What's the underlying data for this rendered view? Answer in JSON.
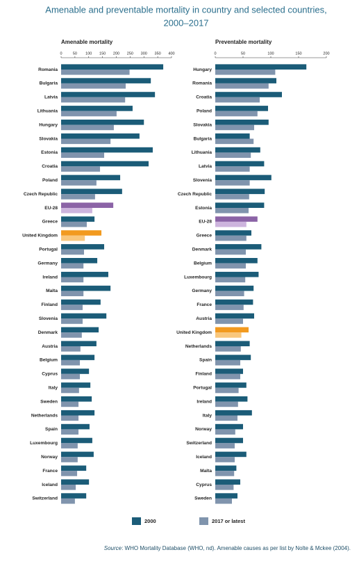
{
  "title": [
    "Amenable and preventable mortality in country and selected countries,",
    "2000–2017"
  ],
  "chart_data": [
    {
      "type": "hbar",
      "title": "Amenable mortality",
      "categories": [
        "Romania",
        "Bulgaria",
        "Latvia",
        "Lithuania",
        "Hungary",
        "Slovakia",
        "Estonia",
        "Croatia",
        "Poland",
        "Czech Republic",
        "EU-28",
        "Greece",
        "United Kingdom",
        "Portugal",
        "Germany",
        "Ireland",
        "Malta",
        "Finland",
        "Slovenia",
        "Denmark",
        "Austria",
        "Belgium",
        "Cyprus",
        "Italy",
        "Sweden",
        "Netherlands",
        "Spain",
        "Luxembourg",
        "Norway",
        "France",
        "Iceland",
        "Switzerland"
      ],
      "series": [
        {
          "name": "2000",
          "color": "#1b5c78",
          "values": [
            370,
            325,
            340,
            259,
            300,
            284,
            332,
            317,
            214,
            221,
            189,
            121,
            146,
            156,
            131,
            171,
            179,
            143,
            164,
            136,
            128,
            121,
            101,
            106,
            111,
            121,
            103,
            113,
            118,
            91,
            101,
            91
          ]
        },
        {
          "name": "2017 or latest",
          "color": "#8094ad",
          "values": [
            248,
            234,
            232,
            201,
            191,
            179,
            156,
            141,
            128,
            123,
            113,
            93,
            86,
            83,
            81,
            81,
            81,
            78,
            78,
            75,
            70,
            68,
            68,
            65,
            63,
            63,
            63,
            60,
            60,
            58,
            53,
            50
          ]
        }
      ],
      "highlights": [
        {
          "index": 10,
          "colors": [
            "#8b63a6",
            "#cdb4dd"
          ]
        },
        {
          "index": 12,
          "colors": [
            "#f29a1f",
            "#f9c77c"
          ]
        }
      ],
      "xlim": [
        0,
        400
      ],
      "xticks": [
        0,
        50,
        100,
        150,
        200,
        250,
        300,
        350,
        400
      ]
    },
    {
      "type": "hbar",
      "title": "Preventable mortality",
      "categories": [
        "Hungary",
        "Romania",
        "Croatia",
        "Poland",
        "Slovakia",
        "Bulgaria",
        "Lithuania",
        "Latvia",
        "Slovenia",
        "Czech Republic",
        "Estonia",
        "EU-28",
        "Greece",
        "Denmark",
        "Belgium",
        "Luxembourg",
        "Germany",
        "France",
        "Austria",
        "United Kingdom",
        "Netherlands",
        "Spain",
        "Finland",
        "Portugal",
        "Ireland",
        "Italy",
        "Norway",
        "Switzerland",
        "Iceland",
        "Malta",
        "Cyprus",
        "Sweden"
      ],
      "series": [
        {
          "color": "#1b5c78",
          "values": [
            164,
            110,
            120,
            95,
            96,
            62,
            81,
            88,
            101,
            89,
            88,
            76,
            65,
            83,
            76,
            78,
            69,
            68,
            70,
            60,
            62,
            64,
            50,
            56,
            58,
            66,
            50,
            50,
            56,
            38,
            45,
            40
          ]
        },
        {
          "color": "#8094ad",
          "values": [
            108,
            96,
            80,
            76,
            70,
            69,
            64,
            62,
            62,
            61,
            60,
            56,
            56,
            55,
            55,
            54,
            52,
            51,
            50,
            47,
            46,
            45,
            45,
            42,
            41,
            40,
            36,
            35,
            35,
            34,
            33,
            30
          ]
        }
      ],
      "highlights": [
        {
          "index": 11,
          "colors": [
            "#8b63a6",
            "#cdb4dd"
          ]
        },
        {
          "index": 19,
          "colors": [
            "#f29a1f",
            "#f9c77c"
          ]
        }
      ],
      "xlim": [
        0,
        200
      ],
      "xticks": [
        0,
        50,
        100,
        150,
        200
      ]
    }
  ],
  "source": {
    "label": "Source",
    "text": ": WHO Mortality Database (WHO, nd). Amenable causes as per list by Nolte & Mckee (2004)."
  }
}
